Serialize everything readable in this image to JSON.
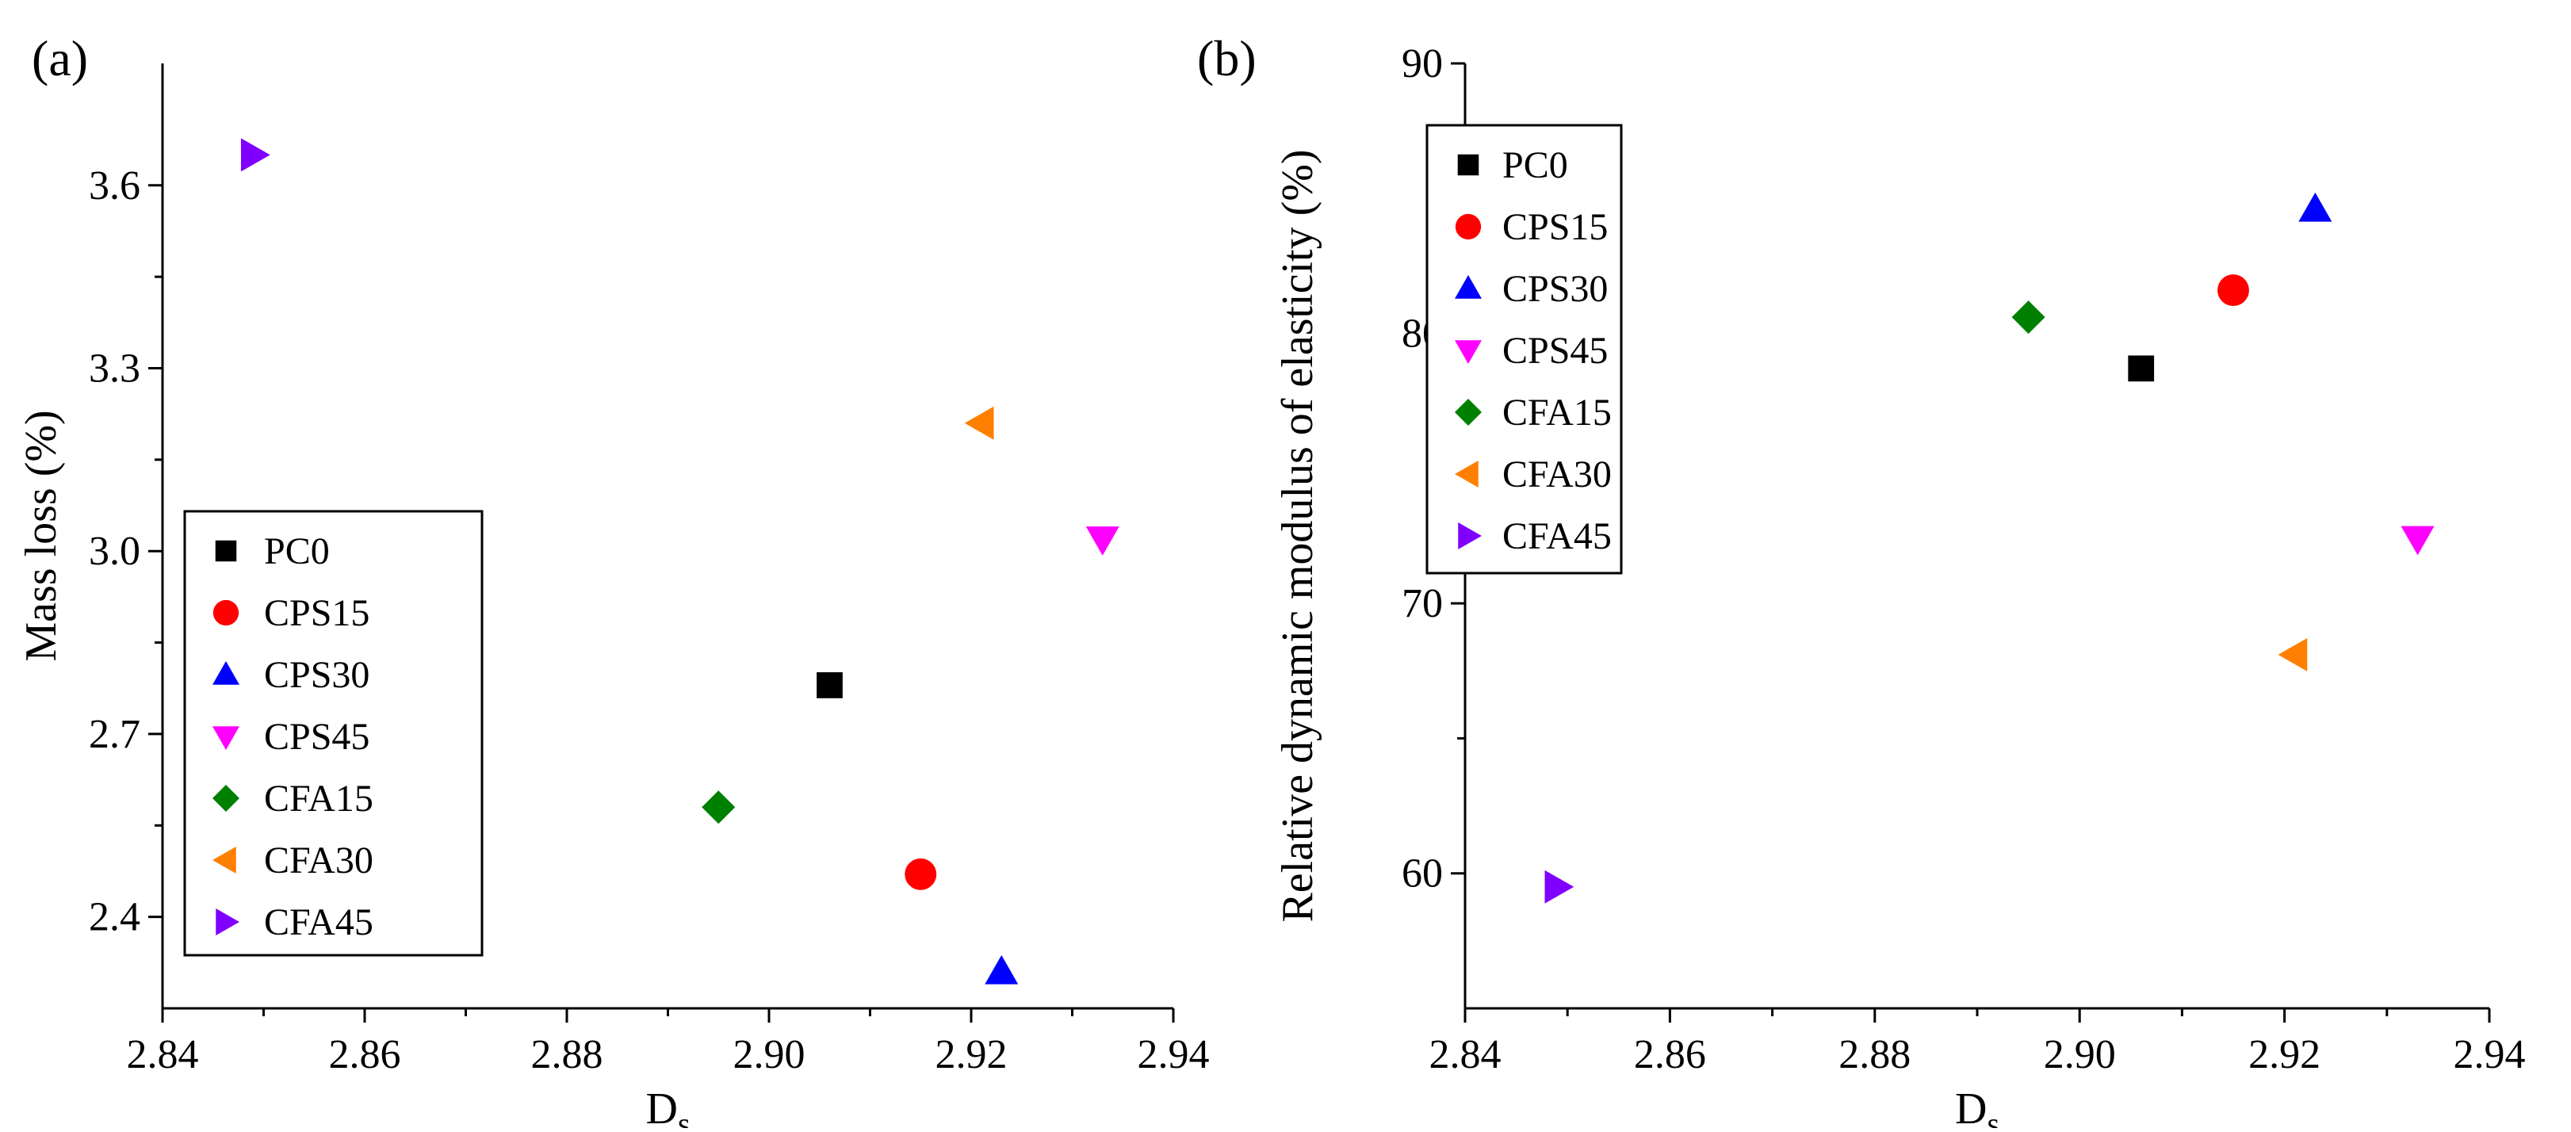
{
  "chart_data": [
    {
      "type": "scatter",
      "panel_label": "(a)",
      "title": "",
      "xlabel": "D",
      "xlabel_sub": "s",
      "ylabel": "Mass loss (%)",
      "xlim": [
        2.84,
        2.94
      ],
      "ylim": [
        2.25,
        3.8
      ],
      "xticks": [
        "2.84",
        "2.86",
        "2.88",
        "2.90",
        "2.92",
        "2.94"
      ],
      "yticks": [
        "2.4",
        "2.7",
        "3.0",
        "3.3",
        "3.6"
      ],
      "grid": false,
      "legend_position": "bottom-left",
      "series": [
        {
          "name": "PC0",
          "marker": "square",
          "color": "#000000",
          "x": 2.906,
          "y": 2.78
        },
        {
          "name": "CPS15",
          "marker": "circle",
          "color": "#ff0000",
          "x": 2.915,
          "y": 2.47
        },
        {
          "name": "CPS30",
          "marker": "triangle-up",
          "color": "#0000ff",
          "x": 2.923,
          "y": 2.31
        },
        {
          "name": "CPS45",
          "marker": "triangle-down",
          "color": "#ff00ff",
          "x": 2.933,
          "y": 3.02
        },
        {
          "name": "CFA15",
          "marker": "diamond",
          "color": "#008000",
          "x": 2.895,
          "y": 2.58
        },
        {
          "name": "CFA30",
          "marker": "triangle-left",
          "color": "#ff8000",
          "x": 2.921,
          "y": 3.21
        },
        {
          "name": "CFA45",
          "marker": "triangle-right",
          "color": "#8000ff",
          "x": 2.849,
          "y": 3.65
        }
      ]
    },
    {
      "type": "scatter",
      "panel_label": "(b)",
      "title": "",
      "xlabel": "D",
      "xlabel_sub": "s",
      "ylabel": "Relative dynamic modulus of elasticity (%)",
      "xlim": [
        2.84,
        2.94
      ],
      "ylim": [
        55,
        90
      ],
      "xticks": [
        "2.84",
        "2.86",
        "2.88",
        "2.90",
        "2.92",
        "2.94"
      ],
      "yticks": [
        "60",
        "70",
        "80",
        "90"
      ],
      "grid": false,
      "legend_position": "top-left",
      "series": [
        {
          "name": "PC0",
          "marker": "square",
          "color": "#000000",
          "x": 2.906,
          "y": 78.7
        },
        {
          "name": "CPS15",
          "marker": "circle",
          "color": "#ff0000",
          "x": 2.915,
          "y": 81.6
        },
        {
          "name": "CPS30",
          "marker": "triangle-up",
          "color": "#0000ff",
          "x": 2.923,
          "y": 84.6
        },
        {
          "name": "CPS45",
          "marker": "triangle-down",
          "color": "#ff00ff",
          "x": 2.933,
          "y": 72.4
        },
        {
          "name": "CFA15",
          "marker": "diamond",
          "color": "#008000",
          "x": 2.895,
          "y": 80.6
        },
        {
          "name": "CFA30",
          "marker": "triangle-left",
          "color": "#ff8000",
          "x": 2.921,
          "y": 68.1
        },
        {
          "name": "CFA45",
          "marker": "triangle-right",
          "color": "#8000ff",
          "x": 2.849,
          "y": 59.5
        }
      ]
    }
  ]
}
